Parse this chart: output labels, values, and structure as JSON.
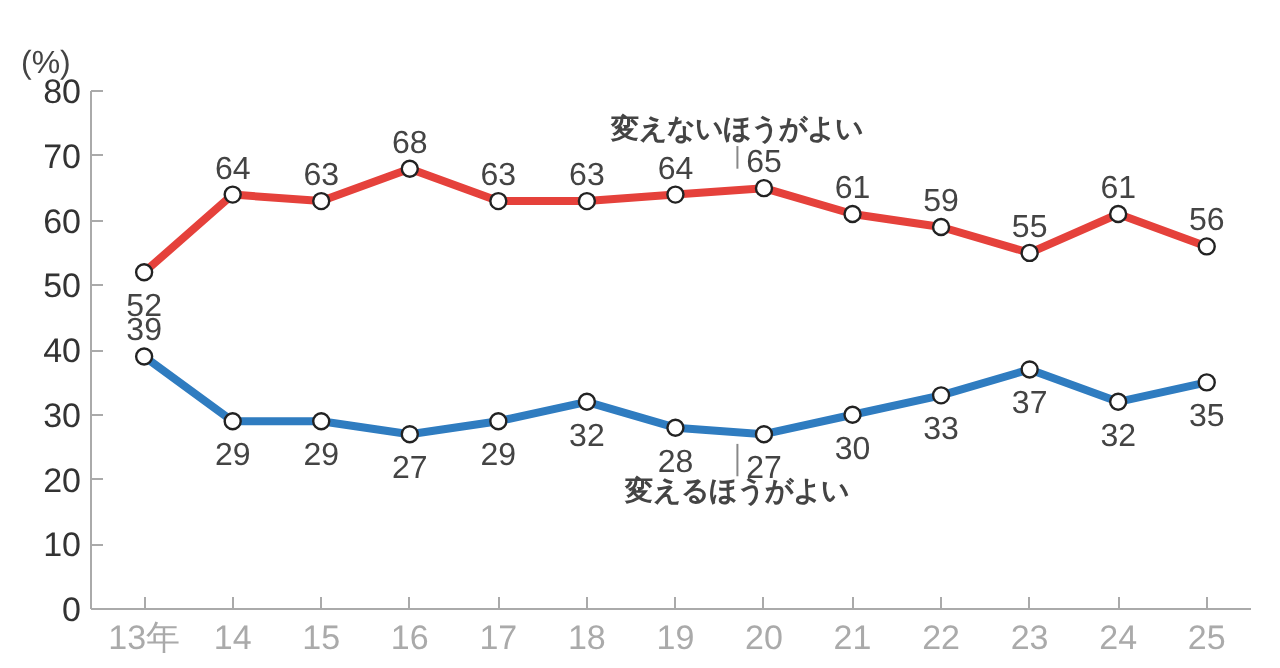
{
  "chart_data": {
    "type": "line",
    "ylabel": "(%)",
    "categories": [
      "13年",
      "14",
      "15",
      "16",
      "17",
      "18",
      "19",
      "20",
      "21",
      "22",
      "23",
      "24",
      "25"
    ],
    "series": [
      {
        "name": "変えないほうがよい",
        "color": "#e5413b",
        "values": [
          52,
          64,
          63,
          68,
          63,
          63,
          64,
          65,
          61,
          59,
          55,
          61,
          56
        ]
      },
      {
        "name": "変えるほうがよい",
        "color": "#2f7cc0",
        "values": [
          39,
          29,
          29,
          27,
          29,
          32,
          28,
          27,
          30,
          33,
          37,
          32,
          35
        ]
      }
    ],
    "ylim": [
      0,
      80
    ],
    "yticks": [
      0,
      10,
      20,
      30,
      40,
      50,
      60,
      70,
      80
    ],
    "data_labels": true,
    "marker": "circle",
    "line_style": "solid",
    "grid": false
  }
}
